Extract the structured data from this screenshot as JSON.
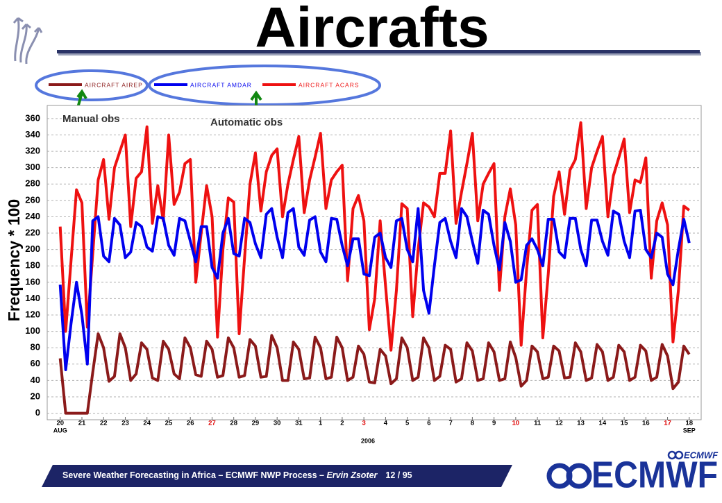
{
  "title": "Aircrafts",
  "chart_data": {
    "type": "line",
    "ylabel": "Frequency * 100",
    "xlabel": "2006",
    "annotations": [
      "Manual obs",
      "Automatic obs"
    ],
    "xlim": [
      -0.6,
      29.55
    ],
    "ylim": [
      -8,
      376
    ],
    "yticks": [
      0,
      20,
      40,
      60,
      80,
      100,
      120,
      140,
      160,
      180,
      200,
      220,
      240,
      260,
      280,
      300,
      320,
      340,
      360
    ],
    "xticks": [
      {
        "value": 0,
        "label": "20"
      },
      {
        "value": 1,
        "label": "21"
      },
      {
        "value": 2,
        "label": "22"
      },
      {
        "value": 3,
        "label": "23"
      },
      {
        "value": 4,
        "label": "24"
      },
      {
        "value": 5,
        "label": "25"
      },
      {
        "value": 6,
        "label": "26"
      },
      {
        "value": 7,
        "label": "27",
        "color": "#e00000"
      },
      {
        "value": 8,
        "label": "28"
      },
      {
        "value": 9,
        "label": "29"
      },
      {
        "value": 10,
        "label": "30"
      },
      {
        "value": 11,
        "label": "31"
      },
      {
        "value": 12,
        "label": "1"
      },
      {
        "value": 13,
        "label": "2"
      },
      {
        "value": 14,
        "label": "3",
        "color": "#e00000"
      },
      {
        "value": 15,
        "label": "4"
      },
      {
        "value": 16,
        "label": "5"
      },
      {
        "value": 17,
        "label": "6"
      },
      {
        "value": 18,
        "label": "7"
      },
      {
        "value": 19,
        "label": "8"
      },
      {
        "value": 20,
        "label": "9"
      },
      {
        "value": 21,
        "label": "10",
        "color": "#e00000"
      },
      {
        "value": 22,
        "label": "11"
      },
      {
        "value": 23,
        "label": "12"
      },
      {
        "value": 24,
        "label": "13"
      },
      {
        "value": 25,
        "label": "14"
      },
      {
        "value": 26,
        "label": "15"
      },
      {
        "value": 27,
        "label": "16"
      },
      {
        "value": 28,
        "label": "17",
        "color": "#e00000"
      },
      {
        "value": 29,
        "label": "18"
      }
    ],
    "month_labels": [
      {
        "value": 0,
        "label": "AUG"
      },
      {
        "value": 29,
        "label": "SEP"
      }
    ],
    "grid": true,
    "x": [
      0,
      0.25,
      0.5,
      0.75,
      1,
      1.25,
      1.5,
      1.75,
      2,
      2.25,
      2.5,
      2.75,
      3,
      3.25,
      3.5,
      3.75,
      4,
      4.25,
      4.5,
      4.75,
      5,
      5.25,
      5.5,
      5.75,
      6,
      6.25,
      6.5,
      6.75,
      7,
      7.25,
      7.5,
      7.75,
      8,
      8.25,
      8.5,
      8.75,
      9,
      9.25,
      9.5,
      9.75,
      10,
      10.25,
      10.5,
      10.75,
      11,
      11.25,
      11.5,
      11.75,
      12,
      12.25,
      12.5,
      12.75,
      13,
      13.25,
      13.5,
      13.75,
      14,
      14.25,
      14.5,
      14.75,
      15,
      15.25,
      15.5,
      15.75,
      16,
      16.25,
      16.5,
      16.75,
      17,
      17.25,
      17.5,
      17.75,
      18,
      18.25,
      18.5,
      18.75,
      19,
      19.25,
      19.5,
      19.75,
      20,
      20.25,
      20.5,
      20.75,
      21,
      21.25,
      21.5,
      21.75,
      22,
      22.25,
      22.5,
      22.75,
      23,
      23.25,
      23.5,
      23.75,
      24,
      24.25,
      24.5,
      24.75,
      25,
      25.25,
      25.5,
      25.75,
      26,
      26.25,
      26.5,
      26.75,
      27,
      27.25,
      27.5,
      27.75,
      28,
      28.25,
      28.5,
      28.75,
      29
    ],
    "series": [
      {
        "name": "AIRCRAFT AIREP",
        "color": "#8b1a1a",
        "values": [
          67,
          0,
          0,
          0,
          0,
          0,
          50,
          97,
          80,
          39,
          45,
          97,
          80,
          40,
          48,
          86,
          78,
          43,
          40,
          88,
          78,
          48,
          42,
          92,
          80,
          47,
          45,
          88,
          78,
          44,
          46,
          92,
          80,
          44,
          46,
          90,
          82,
          44,
          45,
          95,
          80,
          40,
          40,
          87,
          78,
          42,
          43,
          93,
          80,
          42,
          44,
          93,
          80,
          40,
          44,
          82,
          72,
          38,
          37,
          78,
          70,
          36,
          42,
          92,
          80,
          40,
          44,
          92,
          80,
          40,
          45,
          83,
          78,
          38,
          42,
          86,
          76,
          40,
          42,
          86,
          75,
          40,
          42,
          87,
          68,
          33,
          40,
          82,
          75,
          42,
          44,
          82,
          76,
          43,
          44,
          86,
          75,
          40,
          43,
          84,
          75,
          40,
          44,
          83,
          75,
          40,
          44,
          83,
          76,
          40,
          44,
          84,
          70,
          30,
          38,
          82,
          72
        ]
      },
      {
        "name": "AIRCRAFT AMDAR",
        "color": "#0000ee",
        "values": [
          157,
          53,
          110,
          160,
          120,
          60,
          235,
          240,
          192,
          185,
          238,
          230,
          190,
          197,
          233,
          228,
          203,
          198,
          240,
          238,
          205,
          193,
          238,
          235,
          210,
          185,
          228,
          228,
          178,
          165,
          220,
          238,
          195,
          192,
          238,
          233,
          207,
          190,
          243,
          250,
          215,
          190,
          245,
          250,
          203,
          193,
          236,
          240,
          197,
          185,
          238,
          237,
          205,
          180,
          213,
          213,
          170,
          168,
          215,
          220,
          190,
          178,
          235,
          238,
          200,
          185,
          250,
          150,
          122,
          180,
          233,
          238,
          210,
          190,
          250,
          240,
          210,
          183,
          248,
          243,
          205,
          175,
          233,
          210,
          160,
          163,
          205,
          213,
          200,
          180,
          237,
          237,
          197,
          190,
          238,
          238,
          200,
          180,
          236,
          236,
          210,
          193,
          247,
          243,
          210,
          190,
          247,
          248,
          200,
          190,
          220,
          215,
          170,
          157,
          200,
          237,
          208
        ]
      },
      {
        "name": "AIRCRAFT ACARS",
        "color": "#ee1111",
        "values": [
          228,
          100,
          187,
          273,
          257,
          105,
          195,
          285,
          310,
          237,
          300,
          320,
          340,
          228,
          287,
          295,
          350,
          232,
          278,
          235,
          340,
          255,
          270,
          305,
          310,
          160,
          220,
          278,
          240,
          93,
          200,
          263,
          258,
          97,
          190,
          280,
          318,
          247,
          295,
          315,
          323,
          240,
          280,
          310,
          338,
          245,
          285,
          313,
          342,
          250,
          285,
          295,
          303,
          162,
          250,
          266,
          235,
          102,
          140,
          235,
          155,
          77,
          150,
          256,
          250,
          118,
          200,
          257,
          252,
          240,
          293,
          293,
          345,
          232,
          270,
          305,
          342,
          235,
          280,
          293,
          305,
          150,
          240,
          274,
          230,
          83,
          175,
          248,
          255,
          92,
          170,
          265,
          295,
          243,
          297,
          310,
          355,
          250,
          300,
          320,
          338,
          240,
          290,
          312,
          335,
          245,
          285,
          282,
          312,
          165,
          235,
          257,
          230,
          87,
          150,
          253,
          248
        ]
      }
    ]
  },
  "footer": {
    "text": "Severe Weather Forecasting in Africa – ECMWF NWP Process – ",
    "author": "Ervin Zsoter",
    "page": "12 / 95"
  },
  "logo": {
    "large": "ECMWF",
    "small": "ECMWF"
  }
}
